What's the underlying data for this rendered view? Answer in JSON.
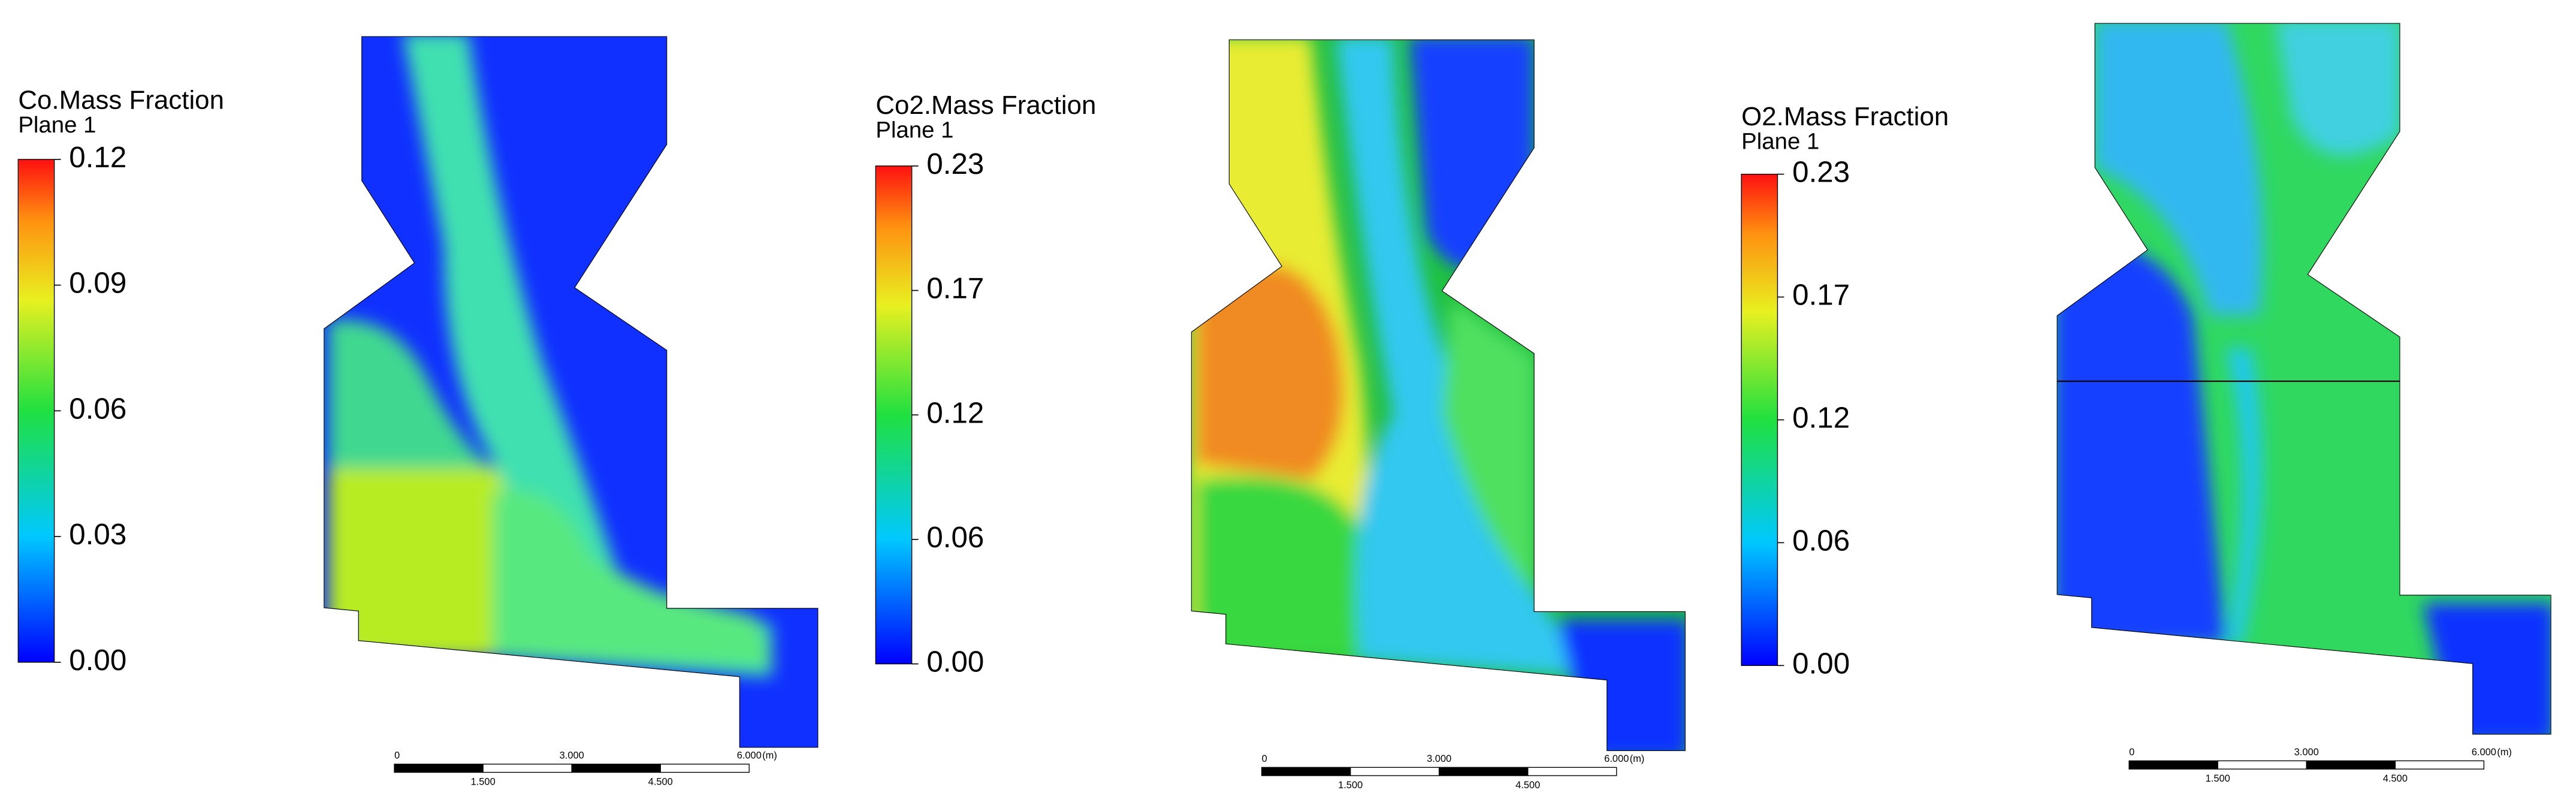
{
  "panels": [
    {
      "legend": {
        "title": "Co.Mass Fraction",
        "subtitle": "Plane 1",
        "ticks": [
          "0.12",
          "0.09",
          "0.06",
          "0.03",
          "0.00"
        ]
      },
      "scale": {
        "top": [
          "0",
          "3.000",
          "6.000"
        ],
        "unit": "(m)",
        "bottom": [
          "1.500",
          "4.500"
        ]
      }
    },
    {
      "legend": {
        "title": "Co2.Mass Fraction",
        "subtitle": "Plane 1",
        "ticks": [
          "0.23",
          "0.17",
          "0.12",
          "0.06",
          "0.00"
        ]
      },
      "scale": {
        "top": [
          "0",
          "3.000",
          "6.000"
        ],
        "unit": "(m)",
        "bottom": [
          "1.500",
          "4.500"
        ]
      }
    },
    {
      "legend": {
        "title": "O2.Mass Fraction",
        "subtitle": "Plane 1",
        "ticks": [
          "0.23",
          "0.17",
          "0.12",
          "0.06",
          "0.00"
        ]
      },
      "scale": {
        "top": [
          "0",
          "3.000",
          "6.000"
        ],
        "unit": "(m)",
        "bottom": [
          "1.500",
          "4.500"
        ]
      }
    }
  ]
}
